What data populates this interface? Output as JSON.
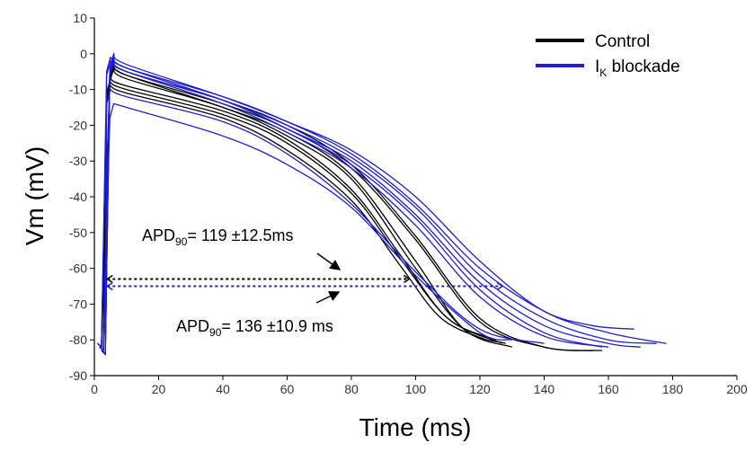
{
  "chart_data": {
    "type": "line",
    "xlabel": "Time (ms)",
    "ylabel": "Vm (mV)",
    "xlim": [
      0,
      200
    ],
    "ylim": [
      -90,
      10
    ],
    "xticks": [
      0,
      20,
      40,
      60,
      80,
      100,
      120,
      140,
      160,
      180,
      200
    ],
    "yticks": [
      10,
      0,
      -10,
      -20,
      -30,
      -40,
      -50,
      -60,
      -70,
      -80,
      -90
    ],
    "grid": false,
    "legend": {
      "placement": "top-right",
      "entries": [
        {
          "label": "Control",
          "color": "#000000"
        },
        {
          "label_main": "I",
          "label_sub": "K",
          "label_rest": " blockade",
          "color": "#1f1fd1"
        }
      ]
    },
    "series": [
      {
        "group": "Control",
        "color": "#000000",
        "peak": [
          5,
          -7
        ],
        "points": [
          [
            10,
            -9
          ],
          [
            40,
            -16
          ],
          [
            60,
            -24
          ],
          [
            80,
            -38
          ],
          [
            95,
            -56
          ],
          [
            110,
            -74
          ],
          [
            127,
            -81
          ]
        ]
      },
      {
        "group": "Control",
        "color": "#000000",
        "peak": [
          5,
          -8
        ],
        "points": [
          [
            10,
            -10
          ],
          [
            40,
            -17
          ],
          [
            60,
            -25
          ],
          [
            80,
            -39
          ],
          [
            95,
            -57
          ],
          [
            110,
            -74
          ],
          [
            125,
            -80
          ]
        ]
      },
      {
        "group": "Control",
        "color": "#000000",
        "peak": [
          5,
          -9
        ],
        "points": [
          [
            10,
            -11
          ],
          [
            40,
            -18
          ],
          [
            60,
            -27
          ],
          [
            80,
            -41
          ],
          [
            95,
            -59
          ],
          [
            108,
            -74
          ],
          [
            122,
            -80
          ]
        ]
      },
      {
        "group": "Control",
        "color": "#000000",
        "peak": [
          6,
          -3
        ],
        "points": [
          [
            10,
            -6
          ],
          [
            40,
            -15
          ],
          [
            60,
            -22
          ],
          [
            80,
            -34
          ],
          [
            100,
            -58
          ],
          [
            115,
            -77
          ],
          [
            130,
            -82
          ]
        ]
      },
      {
        "group": "Control",
        "color": "#000000",
        "peak": [
          6,
          -4
        ],
        "points": [
          [
            10,
            -7
          ],
          [
            40,
            -15
          ],
          [
            60,
            -23
          ],
          [
            80,
            -35
          ],
          [
            100,
            -60
          ],
          [
            115,
            -77
          ],
          [
            128,
            -81
          ]
        ]
      },
      {
        "group": "Control",
        "color": "#000000",
        "peak": [
          6,
          -2
        ],
        "points": [
          [
            10,
            -5
          ],
          [
            40,
            -13
          ],
          [
            60,
            -20
          ],
          [
            80,
            -31
          ],
          [
            100,
            -51
          ],
          [
            120,
            -74
          ],
          [
            140,
            -82
          ],
          [
            158,
            -83
          ]
        ]
      },
      {
        "group": "Control",
        "color": "#000000",
        "peak": [
          6,
          -3
        ],
        "points": [
          [
            10,
            -6
          ],
          [
            40,
            -14
          ],
          [
            60,
            -21
          ],
          [
            80,
            -32
          ],
          [
            100,
            -52
          ],
          [
            120,
            -75
          ],
          [
            140,
            -82
          ],
          [
            155,
            -83
          ]
        ]
      },
      {
        "group": "IK blockade",
        "color": "#1f1fd1",
        "peak": [
          6,
          0
        ],
        "points": [
          [
            10,
            -3
          ],
          [
            40,
            -12
          ],
          [
            60,
            -19
          ],
          [
            80,
            -27
          ],
          [
            100,
            -40
          ],
          [
            120,
            -58
          ],
          [
            140,
            -72
          ],
          [
            160,
            -78
          ],
          [
            178,
            -81
          ]
        ]
      },
      {
        "group": "IK blockade",
        "color": "#1f1fd1",
        "peak": [
          5,
          -1
        ],
        "points": [
          [
            10,
            -4
          ],
          [
            40,
            -13
          ],
          [
            60,
            -20
          ],
          [
            80,
            -29
          ],
          [
            100,
            -43
          ],
          [
            120,
            -62
          ],
          [
            140,
            -74
          ],
          [
            160,
            -80
          ],
          [
            175,
            -81
          ]
        ]
      },
      {
        "group": "IK blockade",
        "color": "#1f1fd1",
        "peak": [
          5,
          -2
        ],
        "points": [
          [
            10,
            -5
          ],
          [
            40,
            -13
          ],
          [
            60,
            -21
          ],
          [
            80,
            -31
          ],
          [
            100,
            -46
          ],
          [
            120,
            -66
          ],
          [
            140,
            -78
          ],
          [
            158,
            -82
          ]
        ]
      },
      {
        "group": "IK blockade",
        "color": "#1f1fd1",
        "peak": [
          6,
          -1
        ],
        "points": [
          [
            10,
            -4
          ],
          [
            40,
            -12
          ],
          [
            60,
            -19
          ],
          [
            80,
            -28
          ],
          [
            100,
            -42
          ],
          [
            120,
            -60
          ],
          [
            140,
            -72
          ],
          [
            155,
            -76
          ],
          [
            168,
            -77
          ]
        ]
      },
      {
        "group": "IK blockade",
        "color": "#1f1fd1",
        "peak": [
          6,
          -2
        ],
        "points": [
          [
            10,
            -5
          ],
          [
            40,
            -14
          ],
          [
            60,
            -22
          ],
          [
            80,
            -32
          ],
          [
            100,
            -48
          ],
          [
            120,
            -68
          ],
          [
            140,
            -79
          ],
          [
            160,
            -82
          ]
        ]
      },
      {
        "group": "IK blockade",
        "color": "#1f1fd1",
        "peak": [
          5,
          -10
        ],
        "points": [
          [
            10,
            -12
          ],
          [
            40,
            -19
          ],
          [
            60,
            -28
          ],
          [
            80,
            -42
          ],
          [
            100,
            -61
          ],
          [
            120,
            -77
          ],
          [
            140,
            -81
          ]
        ]
      },
      {
        "group": "IK blockade",
        "color": "#1f1fd1",
        "peak": [
          6,
          -14
        ],
        "points": [
          [
            10,
            -15
          ],
          [
            40,
            -23
          ],
          [
            60,
            -31
          ],
          [
            80,
            -43
          ],
          [
            100,
            -62
          ],
          [
            120,
            -78
          ],
          [
            130,
            -80
          ]
        ]
      },
      {
        "group": "IK blockade",
        "color": "#1f1fd1",
        "peak": [
          6,
          -1
        ],
        "points": [
          [
            10,
            -4
          ],
          [
            40,
            -13
          ],
          [
            60,
            -21
          ],
          [
            80,
            -30
          ],
          [
            100,
            -45
          ],
          [
            120,
            -64
          ],
          [
            140,
            -76
          ],
          [
            160,
            -81
          ],
          [
            170,
            -82
          ]
        ]
      }
    ],
    "apd_markers": [
      {
        "group": "Control",
        "y": -63,
        "x_start": 4,
        "x_end": 98,
        "color": "#000000"
      },
      {
        "group": "IK blockade",
        "y": -65,
        "x_start": 4,
        "x_end": 127,
        "color": "#1f1fd1"
      }
    ],
    "annotations": [
      {
        "id": "control",
        "main": "APD",
        "sub": "90",
        "rest": "= 119 ±12.5ms"
      },
      {
        "id": "blockade",
        "main": "APD",
        "sub": "90",
        "rest": "= 136 ±10.9 ms"
      }
    ]
  }
}
